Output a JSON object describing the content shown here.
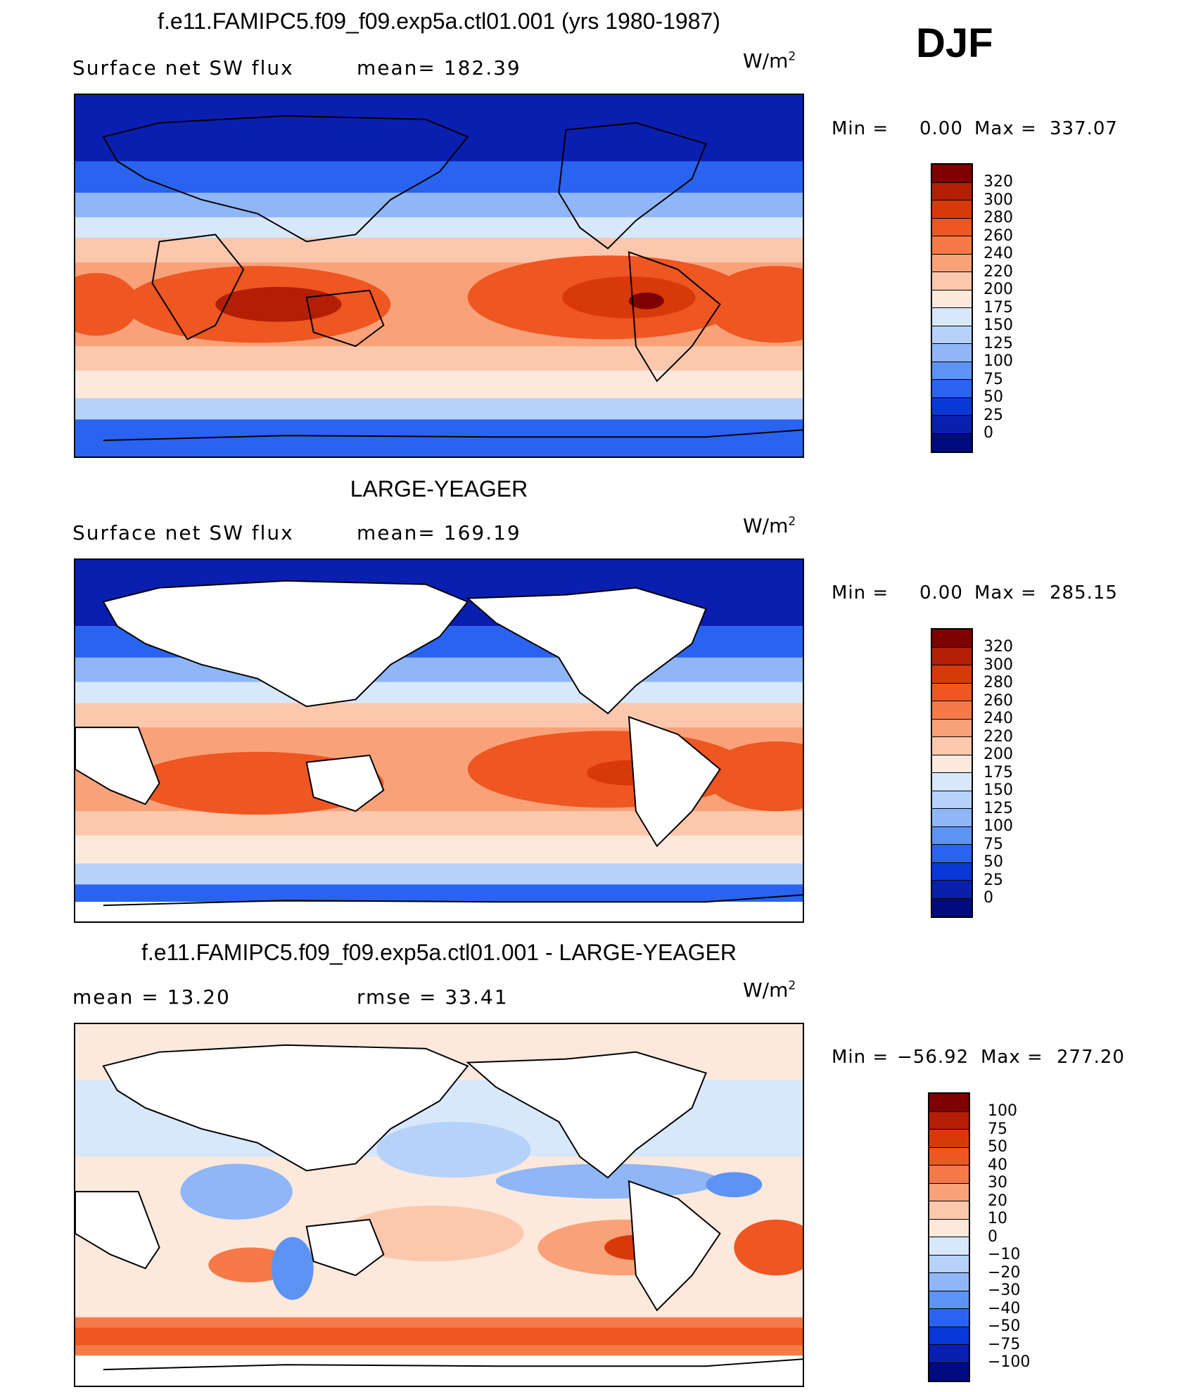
{
  "season": "DJF",
  "panels": [
    {
      "title": "f.e11.FAMIPC5.f09_f09.exp5a.ctl01.001 (yrs 1980-1987)",
      "left_label": "Surface net SW flux",
      "mid_label": "mean= 182.39",
      "unit_base": "W/m",
      "unit_exp": "2",
      "min_label": "Min =",
      "min_value": "0.00",
      "max_label": "Max =",
      "max_value": "337.07",
      "colorbar": {
        "labels": [
          "320",
          "300",
          "280",
          "260",
          "240",
          "220",
          "200",
          "175",
          "150",
          "125",
          "100",
          "75",
          "50",
          "25",
          "0"
        ],
        "colors": [
          "#7f0000",
          "#b31e05",
          "#d7390b",
          "#ee5622",
          "#f57a48",
          "#f9a27a",
          "#fcc8ad",
          "#fde9dc",
          "#d8e8fb",
          "#b7d2f8",
          "#8fb6f6",
          "#5d93f3",
          "#2a63ef",
          "#0a38d8",
          "#0a1fb0",
          "#020a80"
        ]
      }
    },
    {
      "title": "LARGE-YEAGER",
      "left_label": "Surface net SW flux",
      "mid_label": "mean= 169.19",
      "unit_base": "W/m",
      "unit_exp": "2",
      "min_label": "Min =",
      "min_value": "0.00",
      "max_label": "Max =",
      "max_value": "285.15",
      "colorbar": {
        "labels": [
          "320",
          "300",
          "280",
          "260",
          "240",
          "220",
          "200",
          "175",
          "150",
          "125",
          "100",
          "75",
          "50",
          "25",
          "0"
        ],
        "colors": [
          "#7f0000",
          "#b31e05",
          "#d7390b",
          "#ee5622",
          "#f57a48",
          "#f9a27a",
          "#fcc8ad",
          "#fde9dc",
          "#d8e8fb",
          "#b7d2f8",
          "#8fb6f6",
          "#5d93f3",
          "#2a63ef",
          "#0a38d8",
          "#0a1fb0",
          "#020a80"
        ]
      }
    },
    {
      "title": "f.e11.FAMIPC5.f09_f09.exp5a.ctl01.001 - LARGE-YEAGER",
      "left_label": "mean = 13.20",
      "mid_label": "rmse = 33.41",
      "unit_base": "W/m",
      "unit_exp": "2",
      "min_label": "Min =",
      "min_value": "−56.92",
      "max_label": "Max =",
      "max_value": "277.20",
      "colorbar": {
        "labels": [
          "100",
          "75",
          "50",
          "40",
          "30",
          "20",
          "10",
          "0",
          "−10",
          "−20",
          "−30",
          "−40",
          "−50",
          "−75",
          "−100"
        ],
        "colors": [
          "#7f0000",
          "#b31e05",
          "#d7390b",
          "#ee5622",
          "#f57a48",
          "#f9a27a",
          "#fcc8ad",
          "#fde9dc",
          "#d8e8fb",
          "#b7d2f8",
          "#8fb6f6",
          "#5d93f3",
          "#2a63ef",
          "#0a38d8",
          "#0a1fb0",
          "#020a80"
        ]
      }
    }
  ]
}
